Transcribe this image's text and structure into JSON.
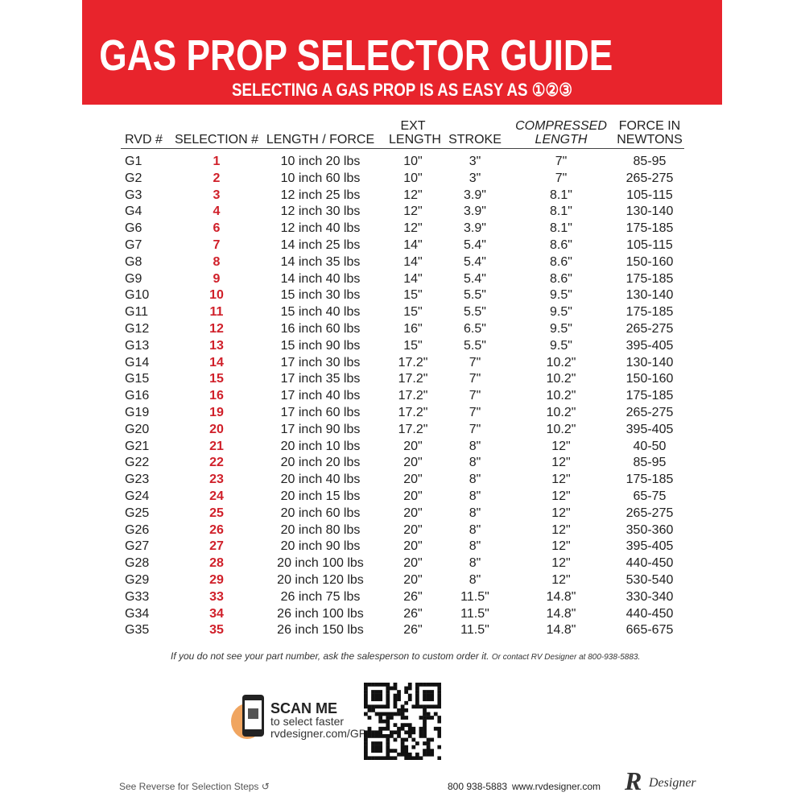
{
  "header": {
    "title": "GAS PROP SELECTOR GUIDE",
    "subtitle": "SELECTING A GAS PROP IS AS EASY AS ①②③"
  },
  "table": {
    "columns": [
      "RVD #",
      "SELECTION #",
      "LENGTH / FORCE",
      "EXT LENGTH",
      "STROKE",
      "COMPRESSED LENGTH",
      "FORCE IN NEWTONS"
    ],
    "rows": [
      [
        "G1",
        "1",
        "10 inch 20 lbs",
        "10\"",
        "3\"",
        "7\"",
        "85-95"
      ],
      [
        "G2",
        "2",
        "10 inch 60 lbs",
        "10\"",
        "3\"",
        "7\"",
        "265-275"
      ],
      [
        "G3",
        "3",
        "12 inch 25 lbs",
        "12\"",
        "3.9\"",
        "8.1\"",
        "105-115"
      ],
      [
        "G4",
        "4",
        "12 inch 30 lbs",
        "12\"",
        "3.9\"",
        "8.1\"",
        "130-140"
      ],
      [
        "G6",
        "6",
        "12 inch 40 lbs",
        "12\"",
        "3.9\"",
        "8.1\"",
        "175-185"
      ],
      [
        "G7",
        "7",
        "14 inch 25 lbs",
        "14\"",
        "5.4\"",
        "8.6\"",
        "105-115"
      ],
      [
        "G8",
        "8",
        "14 inch 35 lbs",
        "14\"",
        "5.4\"",
        "8.6\"",
        "150-160"
      ],
      [
        "G9",
        "9",
        "14 inch 40 lbs",
        "14\"",
        "5.4\"",
        "8.6\"",
        "175-185"
      ],
      [
        "G10",
        "10",
        "15 inch 30 lbs",
        "15\"",
        "5.5\"",
        "9.5\"",
        "130-140"
      ],
      [
        "G11",
        "11",
        "15 inch 40 lbs",
        "15\"",
        "5.5\"",
        "9.5\"",
        "175-185"
      ],
      [
        "G12",
        "12",
        "16 inch 60 lbs",
        "16\"",
        "6.5\"",
        "9.5\"",
        "265-275"
      ],
      [
        "G13",
        "13",
        "15 inch 90 lbs",
        "15\"",
        "5.5\"",
        "9.5\"",
        "395-405"
      ],
      [
        "G14",
        "14",
        "17 inch 30 lbs",
        "17.2\"",
        "7\"",
        "10.2\"",
        "130-140"
      ],
      [
        "G15",
        "15",
        "17 inch 35 lbs",
        "17.2\"",
        "7\"",
        "10.2\"",
        "150-160"
      ],
      [
        "G16",
        "16",
        "17 inch 40 lbs",
        "17.2\"",
        "7\"",
        "10.2\"",
        "175-185"
      ],
      [
        "G19",
        "19",
        "17 inch 60 lbs",
        "17.2\"",
        "7\"",
        "10.2\"",
        "265-275"
      ],
      [
        "G20",
        "20",
        "17 inch 90 lbs",
        "17.2\"",
        "7\"",
        "10.2\"",
        "395-405"
      ],
      [
        "G21",
        "21",
        "20 inch 10 lbs",
        "20\"",
        "8\"",
        "12\"",
        "40-50"
      ],
      [
        "G22",
        "22",
        "20 inch 20 lbs",
        "20\"",
        "8\"",
        "12\"",
        "85-95"
      ],
      [
        "G23",
        "23",
        "20 inch 40 lbs",
        "20\"",
        "8\"",
        "12\"",
        "175-185"
      ],
      [
        "G24",
        "24",
        "20 inch 15 lbs",
        "20\"",
        "8\"",
        "12\"",
        "65-75"
      ],
      [
        "G25",
        "25",
        "20 inch 60 lbs",
        "20\"",
        "8\"",
        "12\"",
        "265-275"
      ],
      [
        "G26",
        "26",
        "20 inch 80 lbs",
        "20\"",
        "8\"",
        "12\"",
        "350-360"
      ],
      [
        "G27",
        "27",
        "20 inch 90 lbs",
        "20\"",
        "8\"",
        "12\"",
        "395-405"
      ],
      [
        "G28",
        "28",
        "20 inch 100 lbs",
        "20\"",
        "8\"",
        "12\"",
        "440-450"
      ],
      [
        "G29",
        "29",
        "20 inch 120 lbs",
        "20\"",
        "8\"",
        "12\"",
        "530-540"
      ],
      [
        "G33",
        "33",
        "26 inch 75 lbs",
        "26\"",
        "11.5\"",
        "14.8\"",
        "330-340"
      ],
      [
        "G34",
        "34",
        "26 inch 100 lbs",
        "26\"",
        "11.5\"",
        "14.8\"",
        "440-450"
      ],
      [
        "G35",
        "35",
        "26 inch 150 lbs",
        "26\"",
        "11.5\"",
        "14.8\"",
        "665-675"
      ]
    ]
  },
  "note": {
    "main": "If you do not see your part number, ask the salesperson to custom order it.",
    "contact": "Or contact RV Designer at 800-938-5883."
  },
  "scan": {
    "title": "SCAN ME",
    "line": "to select faster",
    "url": "rvdesigner.com/GP"
  },
  "footer": {
    "reverse": "See Reverse for Selection Steps",
    "phone": "800 938-5883",
    "website": "www.rvdesigner.com",
    "logo_mark": "R",
    "logo_text": "Designer"
  }
}
